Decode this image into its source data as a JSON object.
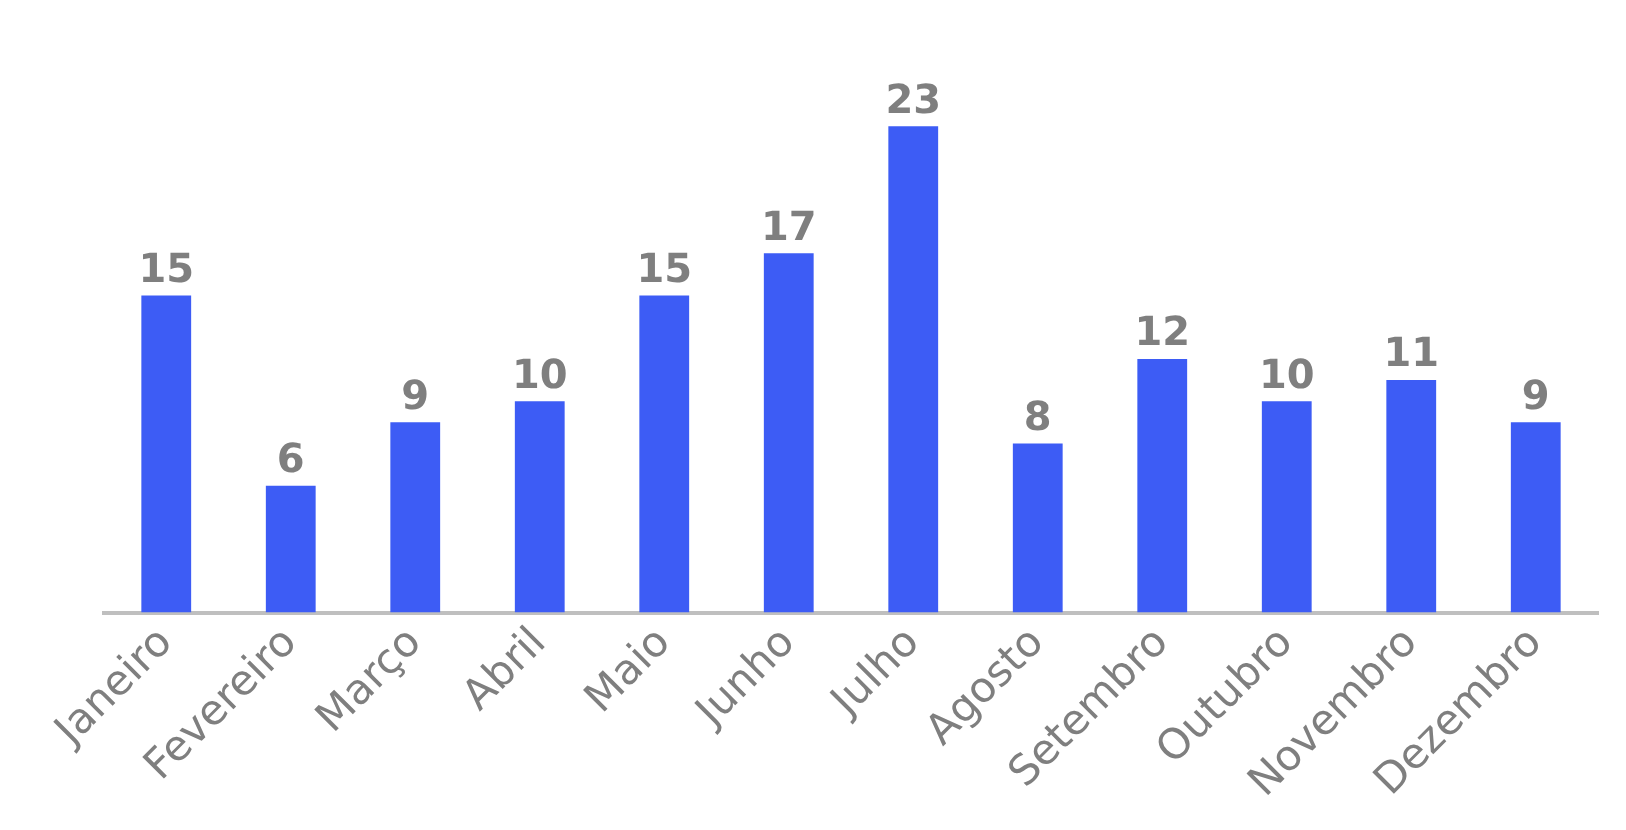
{
  "chart_data": {
    "type": "bar",
    "categories": [
      "Janeiro",
      "Fevereiro",
      "Março",
      "Abril",
      "Maio",
      "Junho",
      "Julho",
      "Agosto",
      "Setembro",
      "Outubro",
      "Novembro",
      "Dezembro"
    ],
    "values": [
      15,
      6,
      9,
      10,
      15,
      17,
      23,
      8,
      12,
      10,
      11,
      9
    ],
    "color": "#3d5cf5",
    "data_labels": true,
    "grid": false,
    "legend": false
  }
}
